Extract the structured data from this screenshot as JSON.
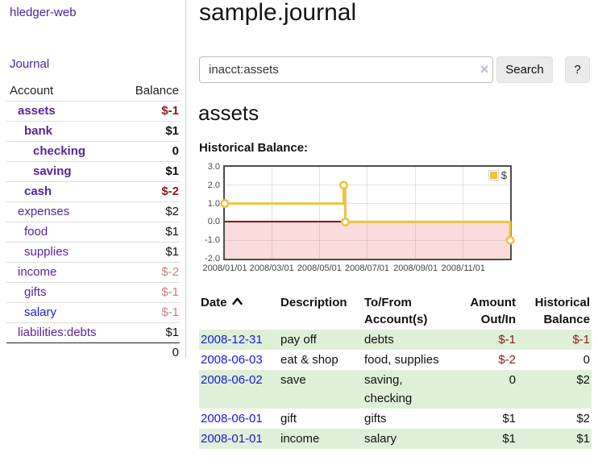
{
  "colors": {
    "link_purple": "#4b23a0",
    "link_blue": "#1b1bdf",
    "negative_strong": "#871c1c",
    "negative_muted": "#c28383",
    "row_green": "#dff0d8",
    "series_yellow": "#edc240",
    "negative_region_pink": "#fadcdc",
    "zero_line_red": "#8f1515"
  },
  "sidebar": {
    "brand": "hledger-web",
    "journal_link": "Journal",
    "table_header": {
      "account": "Account",
      "balance": "Balance"
    },
    "accounts": [
      {
        "name": "assets",
        "balance": "$-1",
        "depth": 1,
        "bold": true,
        "name_color": "purple",
        "balance_style": "neg-strong"
      },
      {
        "name": "bank",
        "balance": "$1",
        "depth": 2,
        "bold": true,
        "name_color": "purple",
        "balance_style": "pos"
      },
      {
        "name": "checking",
        "balance": "0",
        "depth": 3,
        "bold": true,
        "name_color": "purple",
        "balance_style": "pos"
      },
      {
        "name": "saving",
        "balance": "$1",
        "depth": 3,
        "bold": true,
        "name_color": "purple",
        "balance_style": "pos"
      },
      {
        "name": "cash",
        "balance": "$-2",
        "depth": 2,
        "bold": true,
        "name_color": "purple",
        "balance_style": "neg-strong"
      },
      {
        "name": "expenses",
        "balance": "$2",
        "depth": 1,
        "bold": false,
        "name_color": "purple",
        "balance_style": "pos"
      },
      {
        "name": "food",
        "balance": "$1",
        "depth": 2,
        "bold": false,
        "name_color": "purple",
        "balance_style": "pos"
      },
      {
        "name": "supplies",
        "balance": "$1",
        "depth": 2,
        "bold": false,
        "name_color": "purple",
        "balance_style": "pos"
      },
      {
        "name": "income",
        "balance": "$-2",
        "depth": 1,
        "bold": false,
        "name_color": "purple",
        "balance_style": "neg-muted"
      },
      {
        "name": "gifts",
        "balance": "$-1",
        "depth": 2,
        "bold": false,
        "name_color": "purple",
        "balance_style": "neg-muted"
      },
      {
        "name": "salary",
        "balance": "$-1",
        "depth": 2,
        "bold": false,
        "name_color": "blue",
        "balance_style": "neg-muted"
      },
      {
        "name": "liabilities:debts",
        "balance": "$1",
        "depth": 1,
        "bold": false,
        "name_color": "purple",
        "balance_style": "pos"
      }
    ],
    "total": "0"
  },
  "main": {
    "title": "sample.journal",
    "search": {
      "value": "inacct:assets",
      "clear_icon": "×",
      "search_button": "Search",
      "help_button": "?"
    },
    "account_heading": "assets",
    "chart_label": "Historical Balance:"
  },
  "chart_data": {
    "type": "line",
    "title": "Historical Balance",
    "step": true,
    "series": [
      {
        "name": "$",
        "color": "#edc240",
        "points": [
          [
            "2008-01-01",
            1
          ],
          [
            "2008-06-01",
            2
          ],
          [
            "2008-06-03",
            0
          ],
          [
            "2008-12-31",
            -1
          ]
        ]
      }
    ],
    "x_range": [
      "2008-01-01",
      "2008-12-31"
    ],
    "ylim": [
      -2,
      3
    ],
    "y_ticks": [
      "3.0",
      "2.0",
      "1.0",
      "0.0",
      "-1.0",
      "-2.0"
    ],
    "x_ticks": [
      "2008/01/01",
      "2008/03/01",
      "2008/05/01",
      "2008/07/01",
      "2008/09/01",
      "2008/11/01"
    ],
    "grid": true,
    "legend_position": "top-right",
    "legend": [
      {
        "label": "$",
        "color": "#edc240"
      }
    ],
    "negative_region_shaded": true
  },
  "register": {
    "columns": [
      {
        "line1": "Date",
        "line2": "",
        "align": "left",
        "sorted": "asc"
      },
      {
        "line1": "Description",
        "line2": "",
        "align": "left"
      },
      {
        "line1": "To/From",
        "line2": "Account(s)",
        "align": "left"
      },
      {
        "line1": "Amount",
        "line2": "Out/In",
        "align": "right"
      },
      {
        "line1": "Historical",
        "line2": "Balance",
        "align": "right"
      }
    ],
    "rows": [
      {
        "date": "2008-12-31",
        "description": "pay off",
        "accounts": "debts",
        "amount": "$-1",
        "amount_negative": true,
        "balance": "$-1",
        "balance_negative": true,
        "shaded": true
      },
      {
        "date": "2008-06-03",
        "description": "eat & shop",
        "accounts": "food, supplies",
        "amount": "$-2",
        "amount_negative": true,
        "balance": "0",
        "balance_negative": false,
        "shaded": false
      },
      {
        "date": "2008-06-02",
        "description": "save",
        "accounts": "saving, checking",
        "amount": "0",
        "amount_negative": false,
        "balance": "$2",
        "balance_negative": false,
        "shaded": true
      },
      {
        "date": "2008-06-01",
        "description": "gift",
        "accounts": "gifts",
        "amount": "$1",
        "amount_negative": false,
        "balance": "$2",
        "balance_negative": false,
        "shaded": false
      },
      {
        "date": "2008-01-01",
        "description": "income",
        "accounts": "salary",
        "amount": "$1",
        "amount_negative": false,
        "balance": "$1",
        "balance_negative": false,
        "shaded": true
      }
    ]
  }
}
